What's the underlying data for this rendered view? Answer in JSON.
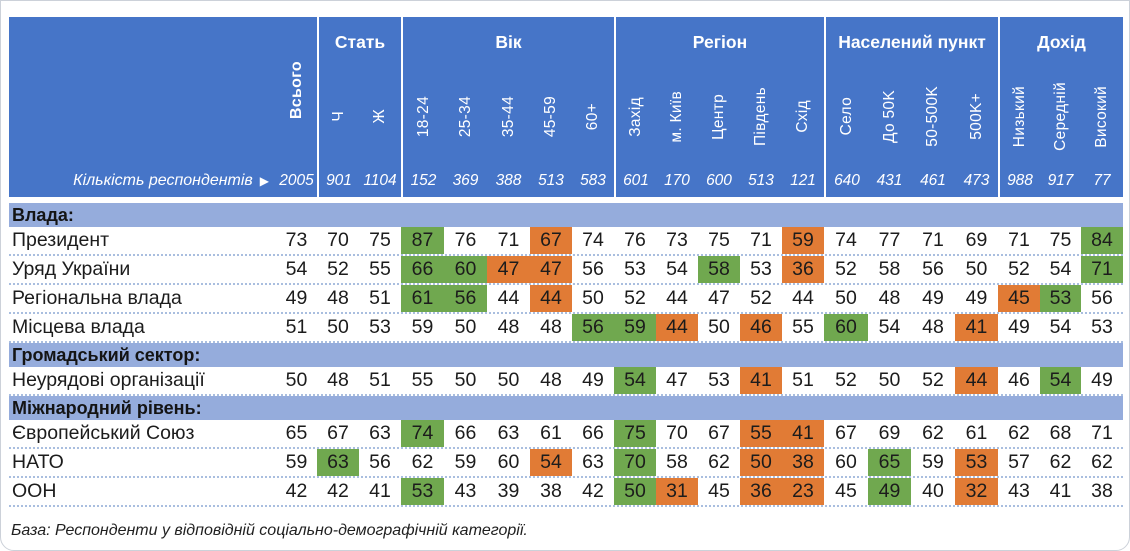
{
  "table": {
    "corner_label": "Кількість респондентів",
    "corner_arrow": "▶",
    "total_column": {
      "label": "Всього",
      "count": 2005
    },
    "groups": [
      {
        "label": "Стать",
        "columns": [
          "Ч",
          "Ж"
        ],
        "counts": [
          901,
          1104
        ]
      },
      {
        "label": "Вік",
        "columns": [
          "18-24",
          "25-34",
          "35-44",
          "45-59",
          "60+"
        ],
        "counts": [
          152,
          369,
          388,
          513,
          583
        ]
      },
      {
        "label": "Регіон",
        "columns": [
          "Захід",
          "м. Київ",
          "Центр",
          "Південь",
          "Схід"
        ],
        "counts": [
          601,
          170,
          600,
          513,
          121
        ]
      },
      {
        "label": "Населений пункт",
        "columns": [
          "Село",
          "До 50K",
          "50-500K",
          "500K+"
        ],
        "counts": [
          640,
          431,
          461,
          473
        ]
      },
      {
        "label": "Дохід",
        "columns": [
          "Низький",
          "Середній",
          "Високий"
        ],
        "counts": [
          988,
          917,
          77
        ]
      }
    ],
    "sections": [
      {
        "title": "Влада:",
        "rows": [
          {
            "label": "Президент",
            "values": [
              73,
              70,
              75,
              87,
              76,
              71,
              67,
              74,
              76,
              73,
              75,
              71,
              59,
              74,
              77,
              71,
              69,
              71,
              75,
              84
            ],
            "hl": [
              "",
              "",
              "",
              "g",
              "",
              "",
              "o",
              "",
              "",
              "",
              "",
              "",
              "o",
              "",
              "",
              "",
              "",
              "",
              "",
              "g"
            ]
          },
          {
            "label": "Уряд України",
            "values": [
              54,
              52,
              55,
              66,
              60,
              47,
              47,
              56,
              53,
              54,
              58,
              53,
              36,
              52,
              58,
              56,
              50,
              52,
              54,
              71
            ],
            "hl": [
              "",
              "",
              "",
              "g",
              "g",
              "o",
              "o",
              "",
              "",
              "",
              "g",
              "",
              "o",
              "",
              "",
              "",
              "",
              "",
              "",
              "g"
            ]
          },
          {
            "label": "Регіональна влада",
            "values": [
              49,
              48,
              51,
              61,
              56,
              44,
              44,
              50,
              52,
              44,
              47,
              52,
              44,
              50,
              48,
              49,
              49,
              45,
              53,
              56
            ],
            "hl": [
              "",
              "",
              "",
              "g",
              "g",
              "",
              "o",
              "",
              "",
              "",
              "",
              "",
              "",
              "",
              "",
              "",
              "",
              "o",
              "g",
              ""
            ]
          },
          {
            "label": "Місцева влада",
            "values": [
              51,
              50,
              53,
              59,
              50,
              48,
              48,
              56,
              59,
              44,
              50,
              46,
              55,
              60,
              54,
              48,
              41,
              49,
              54,
              53
            ],
            "hl": [
              "",
              "",
              "",
              "",
              "",
              "",
              "",
              "g",
              "g",
              "o",
              "",
              "o",
              "",
              "g",
              "",
              "",
              "o",
              "",
              "",
              ""
            ]
          }
        ]
      },
      {
        "title": "Громадський сектор:",
        "rows": [
          {
            "label": "Неурядові організації",
            "values": [
              50,
              48,
              51,
              55,
              50,
              50,
              48,
              49,
              54,
              47,
              53,
              41,
              51,
              52,
              50,
              52,
              44,
              46,
              54,
              49
            ],
            "hl": [
              "",
              "",
              "",
              "",
              "",
              "",
              "",
              "",
              "g",
              "",
              "",
              "o",
              "",
              "",
              "",
              "",
              "o",
              "",
              "g",
              ""
            ]
          }
        ]
      },
      {
        "title": "Міжнародний рівень:",
        "rows": [
          {
            "label": "Європейський Союз",
            "values": [
              65,
              67,
              63,
              74,
              66,
              63,
              61,
              66,
              75,
              70,
              67,
              55,
              41,
              67,
              69,
              62,
              61,
              62,
              68,
              71
            ],
            "hl": [
              "",
              "",
              "",
              "g",
              "",
              "",
              "",
              "",
              "g",
              "",
              "",
              "o",
              "o",
              "",
              "",
              "",
              "",
              "",
              "",
              ""
            ]
          },
          {
            "label": "НАТО",
            "values": [
              59,
              63,
              56,
              62,
              59,
              60,
              54,
              63,
              70,
              58,
              62,
              50,
              38,
              60,
              65,
              59,
              53,
              57,
              62,
              62
            ],
            "hl": [
              "",
              "g",
              "",
              "",
              "",
              "",
              "o",
              "",
              "g",
              "",
              "",
              "o",
              "o",
              "",
              "g",
              "",
              "o",
              "",
              "",
              ""
            ]
          },
          {
            "label": "ООН",
            "values": [
              42,
              42,
              41,
              53,
              43,
              39,
              38,
              42,
              50,
              31,
              45,
              36,
              23,
              45,
              49,
              40,
              32,
              43,
              41,
              38
            ],
            "hl": [
              "",
              "",
              "",
              "g",
              "",
              "",
              "",
              "",
              "g",
              "o",
              "",
              "o",
              "o",
              "",
              "g",
              "",
              "o",
              "",
              "",
              ""
            ]
          }
        ]
      }
    ],
    "footer": "База: Респонденти у відповідній соціально-демографічній категорії.",
    "colors": {
      "header_blue": "#4675C8",
      "banner_blue": "#95ACDC",
      "highlight_green": "#70A84F",
      "highlight_orange": "#E17B35"
    }
  }
}
